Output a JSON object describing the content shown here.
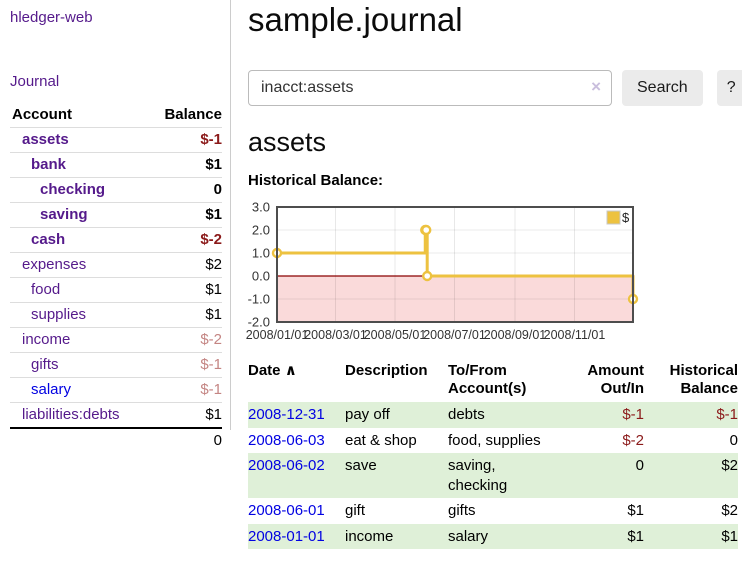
{
  "app": {
    "brand": "hledger-web",
    "nav_journal": "Journal"
  },
  "header": {
    "title": "sample.journal"
  },
  "search": {
    "value": "inacct:assets",
    "clear_icon": "×",
    "button": "Search",
    "help_button": "?"
  },
  "account_page": {
    "heading": "assets",
    "chart_label": "Historical Balance:"
  },
  "sidebar": {
    "headers": {
      "account": "Account",
      "balance": "Balance"
    },
    "accounts": [
      {
        "name": "assets",
        "level": 1,
        "in_focus": true,
        "link": "visited",
        "balance": "$-1",
        "negative": true
      },
      {
        "name": "bank",
        "level": 2,
        "in_focus": true,
        "link": "visited",
        "balance": "$1",
        "negative": false
      },
      {
        "name": "checking",
        "level": 3,
        "in_focus": true,
        "link": "visited",
        "balance": "0",
        "negative": false
      },
      {
        "name": "saving",
        "level": 3,
        "in_focus": true,
        "link": "visited",
        "balance": "$1",
        "negative": false
      },
      {
        "name": "cash",
        "level": 2,
        "in_focus": true,
        "link": "visited",
        "balance": "$-2",
        "negative": true
      },
      {
        "name": "expenses",
        "level": 1,
        "in_focus": false,
        "link": "visited",
        "balance": "$2",
        "negative": false
      },
      {
        "name": "food",
        "level": 2,
        "in_focus": false,
        "link": "visited",
        "balance": "$1",
        "negative": false
      },
      {
        "name": "supplies",
        "level": 2,
        "in_focus": false,
        "link": "visited",
        "balance": "$1",
        "negative": false
      },
      {
        "name": "income",
        "level": 1,
        "in_focus": false,
        "link": "visited",
        "balance": "$-2",
        "negative": true
      },
      {
        "name": "gifts",
        "level": 2,
        "in_focus": false,
        "link": "visited",
        "balance": "$-1",
        "negative": true
      },
      {
        "name": "salary",
        "level": 2,
        "in_focus": false,
        "link": "unvisited",
        "balance": "$-1",
        "negative": true
      },
      {
        "name": "liabilities:debts",
        "level": 1,
        "in_focus": false,
        "link": "visited",
        "balance": "$1",
        "negative": false
      }
    ],
    "total": "0"
  },
  "chart_data": {
    "type": "line",
    "title": "Historical Balance",
    "legend": {
      "label": "$",
      "position": "top-right"
    },
    "x_range": [
      "2008-01-01",
      "2008-12-31"
    ],
    "x_ticks": [
      {
        "date": "2008-01-01",
        "label": "2008/01/01"
      },
      {
        "date": "2008-03-01",
        "label": "2008/03/01"
      },
      {
        "date": "2008-05-01",
        "label": "2008/05/01"
      },
      {
        "date": "2008-07-01",
        "label": "2008/07/01"
      },
      {
        "date": "2008-09-01",
        "label": "2008/09/01"
      },
      {
        "date": "2008-11-01",
        "label": "2008/11/01"
      }
    ],
    "ylim": [
      -2,
      3
    ],
    "y_ticks": [
      3.0,
      2.0,
      1.0,
      0.0,
      -1.0,
      -2.0
    ],
    "step": true,
    "series": [
      {
        "name": "$",
        "color": "#edc240",
        "points": [
          [
            "2008-01-01",
            1
          ],
          [
            "2008-06-01",
            2
          ],
          [
            "2008-06-02",
            2
          ],
          [
            "2008-06-03",
            0
          ],
          [
            "2008-12-31",
            -1
          ]
        ]
      }
    ],
    "negative_region_fill": "#fadada",
    "zero_line_color": "#8b0000",
    "grid": true
  },
  "journal": {
    "headers": {
      "date": "Date",
      "sort_arrow": "∧",
      "description": "Description",
      "accounts_l1": "To/From",
      "accounts_l2": "Account(s)",
      "amount_l1": "Amount",
      "amount_l2": "Out/In",
      "balance_l1": "Historical",
      "balance_l2": "Balance"
    },
    "rows": [
      {
        "date": "2008-12-31",
        "description": "pay off",
        "accounts": [
          "debts"
        ],
        "amount": "$-1",
        "amount_negative": true,
        "balance": "$-1",
        "balance_negative": true
      },
      {
        "date": "2008-06-03",
        "description": "eat & shop",
        "accounts": [
          "food, supplies"
        ],
        "amount": "$-2",
        "amount_negative": true,
        "balance": "0",
        "balance_negative": false
      },
      {
        "date": "2008-06-02",
        "description": "save",
        "accounts": [
          "saving,",
          "checking"
        ],
        "amount": "0",
        "amount_negative": false,
        "balance": "$2",
        "balance_negative": false
      },
      {
        "date": "2008-06-01",
        "description": "gift",
        "accounts": [
          "gifts"
        ],
        "amount": "$1",
        "amount_negative": false,
        "balance": "$2",
        "balance_negative": false
      },
      {
        "date": "2008-01-01",
        "description": "income",
        "accounts": [
          "salary"
        ],
        "amount": "$1",
        "amount_negative": false,
        "balance": "$1",
        "balance_negative": false
      }
    ]
  },
  "colors": {
    "link_visited": "#551a8b",
    "link_unvisited": "#0202e2",
    "negative_strong": "#8b1a1a",
    "negative_soft": "#c48583",
    "row_highlight": "#dff0d8",
    "series_yellow": "#edc240",
    "chart_negative_fill": "#fadada",
    "chart_zero_line": "#8b0000",
    "chart_border": "#4d4d4d",
    "button_bg": "#ebebeb"
  }
}
